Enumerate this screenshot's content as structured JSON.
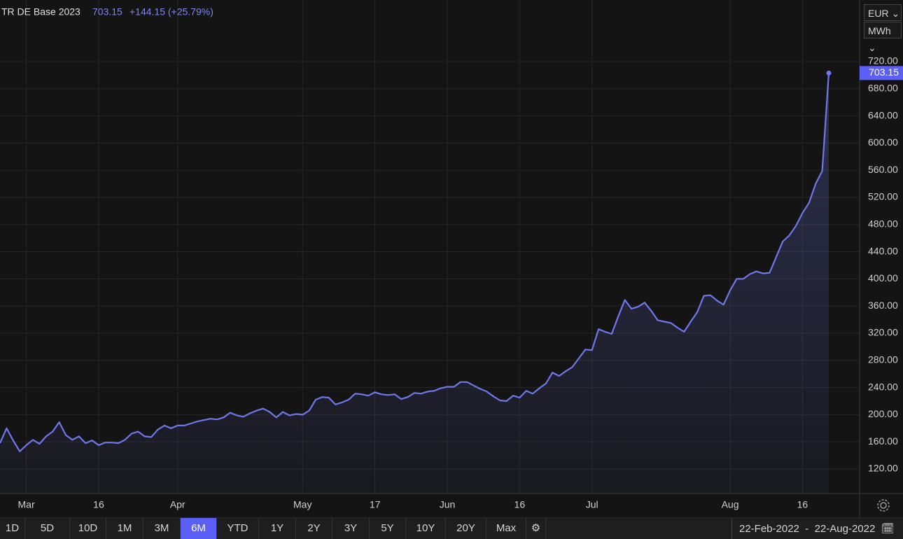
{
  "chart_data": {
    "type": "line",
    "series": [
      {
        "name": "TR DE Base 2023",
        "color": "#6f78ea",
        "values": [
          158,
          180,
          162,
          146,
          155,
          163,
          157,
          168,
          175,
          189,
          170,
          163,
          168,
          158,
          162,
          155,
          159,
          159,
          158,
          163,
          172,
          175,
          168,
          167,
          178,
          184,
          180,
          184,
          184,
          187,
          190,
          192,
          194,
          193,
          196,
          203,
          199,
          197,
          202,
          206,
          209,
          204,
          196,
          204,
          199,
          201,
          200,
          206,
          222,
          226,
          225,
          215,
          218,
          222,
          231,
          230,
          228,
          233,
          230,
          229,
          230,
          223,
          226,
          232,
          231,
          234,
          235,
          239,
          241,
          241,
          248,
          248,
          243,
          238,
          234,
          227,
          221,
          220,
          228,
          225,
          235,
          231,
          239,
          246,
          262,
          257,
          264,
          270,
          283,
          296,
          295,
          326,
          322,
          319,
          345,
          369,
          356,
          359,
          365,
          353,
          339,
          337,
          335,
          328,
          322,
          337,
          351,
          375,
          376,
          368,
          362,
          383,
          400,
          400,
          407,
          411,
          408,
          409,
          432,
          455,
          464,
          478,
          497,
          512,
          540,
          559,
          703.15
        ]
      }
    ],
    "categories": [
      null,
      null,
      null,
      null,
      "Mar",
      null,
      null,
      null,
      null,
      null,
      null,
      null,
      null,
      null,
      null,
      "16",
      null,
      null,
      null,
      null,
      null,
      null,
      null,
      null,
      null,
      null,
      null,
      "Apr",
      null,
      null,
      null,
      null,
      null,
      null,
      null,
      null,
      null,
      null,
      null,
      null,
      null,
      null,
      null,
      null,
      null,
      null,
      "May",
      null,
      null,
      null,
      null,
      null,
      null,
      null,
      null,
      null,
      null,
      "17",
      null,
      null,
      null,
      null,
      null,
      null,
      null,
      null,
      null,
      null,
      "Jun",
      null,
      null,
      null,
      null,
      null,
      null,
      null,
      null,
      null,
      null,
      "16",
      null,
      null,
      null,
      null,
      null,
      null,
      null,
      null,
      null,
      null,
      "Jul",
      null,
      null,
      null,
      null,
      null,
      null,
      null,
      null,
      null,
      null,
      null,
      null,
      null,
      null,
      null,
      null,
      null,
      null,
      null,
      null,
      "Aug",
      null,
      null,
      null,
      null,
      null,
      null,
      null,
      null,
      null,
      null,
      "16",
      null,
      null,
      null,
      null
    ],
    "ylim": [
      83.9,
      810.7
    ],
    "yticks": [
      {
        "value": 120,
        "label": "120.00"
      },
      {
        "value": 160,
        "label": "160.00"
      },
      {
        "value": 200,
        "label": "200.00"
      },
      {
        "value": 240,
        "label": "240.00"
      },
      {
        "value": 280,
        "label": "280.00"
      },
      {
        "value": 320,
        "label": "320.00"
      },
      {
        "value": 360,
        "label": "360.00"
      },
      {
        "value": 400,
        "label": "400.00"
      },
      {
        "value": 440,
        "label": "440.00"
      },
      {
        "value": 480,
        "label": "480.00"
      },
      {
        "value": 520,
        "label": "520.00"
      },
      {
        "value": 560,
        "label": "560.00"
      },
      {
        "value": 600,
        "label": "600.00"
      },
      {
        "value": 640,
        "label": "640.00"
      },
      {
        "value": 680,
        "label": "680.00"
      },
      {
        "value": 720,
        "label": "720.00"
      }
    ],
    "grid": true
  },
  "header": {
    "change": "+144.15 (+25.79%)"
  },
  "units": [
    "EUR",
    "MWh"
  ],
  "ranges": [
    "1D",
    "5D",
    "10D",
    "1M",
    "3M",
    "6M",
    "YTD",
    "1Y",
    "2Y",
    "3Y",
    "5Y",
    "10Y",
    "20Y",
    "Max"
  ],
  "active_range": 5,
  "date_range": {
    "from": "22-Feb-2022",
    "to": "22-Aug-2022"
  }
}
